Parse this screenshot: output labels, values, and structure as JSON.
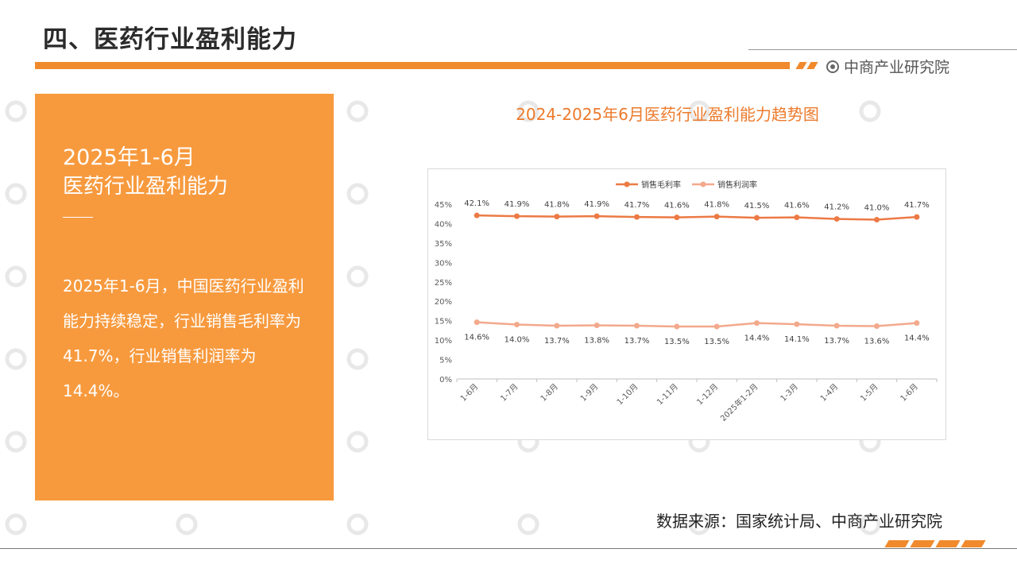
{
  "header": {
    "title": "四、医药行业盈利能力",
    "brand": "中商产业研究院"
  },
  "panel": {
    "period": "2025年1-6月",
    "heading": "医药行业盈利能力",
    "text": "2025年1-6月，中国医药行业盈利能力持续稳定，行业销售毛利率为41.7%，行业销售利润率为14.4%。"
  },
  "source": "数据来源：国家统计局、中商产业研究院",
  "colors": {
    "accent": "#f08a2c",
    "panel": "#f79a3e",
    "series_gross": "#ec7a45",
    "series_profit": "#f3a98c"
  },
  "chart_data": {
    "type": "line",
    "title": "2024-2025年6月医药行业盈利能力趋势图",
    "categories": [
      "1-6月",
      "1-7月",
      "1-8月",
      "1-9月",
      "1-10月",
      "1-11月",
      "1-12月",
      "2025年1-2月",
      "1-3月",
      "1-4月",
      "1-5月",
      "1-6月"
    ],
    "series": [
      {
        "name": "销售毛利率",
        "values": [
          42.1,
          41.9,
          41.8,
          41.9,
          41.7,
          41.6,
          41.8,
          41.5,
          41.6,
          41.2,
          41.0,
          41.7
        ],
        "labels": [
          "42.1%",
          "41.9%",
          "41.8%",
          "41.9%",
          "41.7%",
          "41.6%",
          "41.8%",
          "41.5%",
          "41.6%",
          "41.2%",
          "41.0%",
          "41.7%"
        ]
      },
      {
        "name": "销售利润率",
        "values": [
          14.6,
          14.0,
          13.7,
          13.8,
          13.7,
          13.5,
          13.5,
          14.4,
          14.1,
          13.7,
          13.6,
          14.4
        ],
        "labels": [
          "14.6%",
          "14.0%",
          "13.7%",
          "13.8%",
          "13.7%",
          "13.5%",
          "13.5%",
          "14.4%",
          "14.1%",
          "13.7%",
          "13.6%",
          "14.4%"
        ]
      }
    ],
    "yticks": [
      "0%",
      "5%",
      "10%",
      "15%",
      "20%",
      "25%",
      "30%",
      "35%",
      "40%",
      "45%"
    ],
    "ylim": [
      0,
      45
    ],
    "legend": "top-left",
    "grid": false
  }
}
